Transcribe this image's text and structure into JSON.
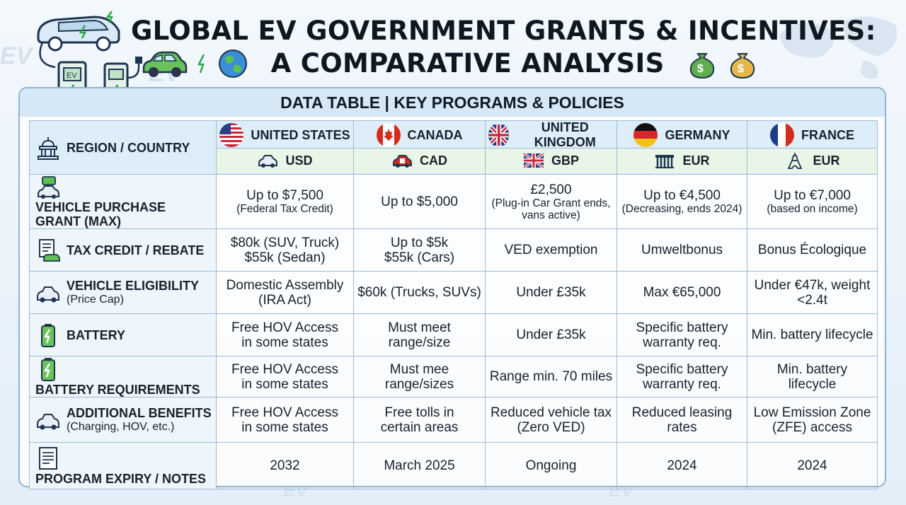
{
  "title_line1": "GLOBAL EV GOVERNMENT GRANTS & INCENTIVES:",
  "title_line2": "A COMPARATIVE ANALYSIS",
  "background_watermark": "EV",
  "hero_charger_label": "EV",
  "table_title": "DATA TABLE | KEY PROGRAMS & POLICIES",
  "colors": {
    "accent_border": "#9ebcd6",
    "header_fill": "#ddeef9",
    "currency_fill": "#e9f6e7"
  },
  "header": {
    "label": "REGION / COUNTRY",
    "label_icon": "capitol-building-icon",
    "countries": [
      {
        "name": "UNITED STATES",
        "currency": "USD",
        "flag_icon": "us-flag-icon",
        "currency_icon": "car-icon"
      },
      {
        "name": "CANADA",
        "currency": "CAD",
        "flag_icon": "canada-flag-icon",
        "currency_icon": "canada-car-icon"
      },
      {
        "name": "UNITED KINGDOM",
        "currency": "GBP",
        "flag_icon": "uk-flag-icon",
        "currency_icon": "uk-flag-small-icon"
      },
      {
        "name": "GERMANY",
        "currency": "EUR",
        "flag_icon": "germany-flag-icon",
        "currency_icon": "brandenburg-gate-icon"
      },
      {
        "name": "FRANCE",
        "currency": "EUR",
        "flag_icon": "france-flag-icon",
        "currency_icon": "eiffel-tower-icon"
      }
    ]
  },
  "rows": [
    {
      "label": "VEHICLE PURCHASE GRANT (MAX)",
      "sub": "",
      "icon": "car-money-icon",
      "cells": [
        {
          "main": "Up to $7,500",
          "note": "(Federal Tax Credit)"
        },
        {
          "main": "Up to $5,000",
          "note": ""
        },
        {
          "main": "£2,500",
          "note": "(Plug-in Car Grant ends, vans active)"
        },
        {
          "main": "Up to €4,500",
          "note": "(Decreasing, ends 2024)"
        },
        {
          "main": "Up to €7,000",
          "note": "(based on income)"
        }
      ]
    },
    {
      "label": "TAX CREDIT / REBATE",
      "sub": "",
      "icon": "tax-document-icon",
      "cells": [
        {
          "main": "$80k (SUV, Truck)\n$55k (Sedan)",
          "note": ""
        },
        {
          "main": "Up to $5k\n$55k (Cars)",
          "note": ""
        },
        {
          "main": "VED exemption",
          "note": ""
        },
        {
          "main": "Umweltbonus",
          "note": ""
        },
        {
          "main": "Bonus Écologique",
          "note": ""
        }
      ]
    },
    {
      "label": "VEHICLE ELIGIBILITY",
      "sub": "(Price Cap)",
      "icon": "car-icon",
      "cells": [
        {
          "main": "Domestic Assembly\n(IRA Act)",
          "note": ""
        },
        {
          "main": "$60k (Trucks, SUVs)",
          "note": ""
        },
        {
          "main": "Under £35k",
          "note": ""
        },
        {
          "main": "Max €65,000",
          "note": ""
        },
        {
          "main": "Under €47k, weight\n<2.4t",
          "note": ""
        }
      ]
    },
    {
      "label": "BATTERY",
      "sub": "",
      "icon": "battery-icon",
      "cells": [
        {
          "main": "Free HOV Access\nin some states",
          "note": ""
        },
        {
          "main": "Must meet\nrange/size",
          "note": ""
        },
        {
          "main": "Under £35k",
          "note": ""
        },
        {
          "main": "Specific battery\nwarranty req.",
          "note": ""
        },
        {
          "main": "Min. battery lifecycle",
          "note": ""
        }
      ]
    },
    {
      "label": "BATTERY REQUIREMENTS",
      "sub": "",
      "icon": "battery-icon",
      "cells": [
        {
          "main": "Free HOV Access\nin some states",
          "note": ""
        },
        {
          "main": "Must mee\nrange/sizes",
          "note": ""
        },
        {
          "main": "Range min. 70 miles",
          "note": ""
        },
        {
          "main": "Specific battery\nwarranty req.",
          "note": ""
        },
        {
          "main": "Min. battery\nlifecycle",
          "note": ""
        }
      ]
    },
    {
      "label": "ADDITIONAL BENEFITS",
      "sub": "(Charging, HOV, etc.)",
      "icon": "car-icon",
      "cells": [
        {
          "main": "Free HOV Access\nin some states",
          "note": ""
        },
        {
          "main": "Free tolls in\ncertain areas",
          "note": ""
        },
        {
          "main": "Reduced vehicle tax\n(Zero VED)",
          "note": ""
        },
        {
          "main": "Reduced leasing\nrates",
          "note": ""
        },
        {
          "main": "Low Emission Zone\n(ZFE) access",
          "note": ""
        }
      ]
    },
    {
      "label": "PROGRAM EXPIRY / NOTES",
      "sub": "",
      "icon": "notes-document-icon",
      "cells": [
        {
          "main": "2032",
          "note": ""
        },
        {
          "main": "March 2025",
          "note": ""
        },
        {
          "main": "Ongoing",
          "note": ""
        },
        {
          "main": "2024",
          "note": ""
        },
        {
          "main": "2024",
          "note": ""
        }
      ]
    }
  ]
}
